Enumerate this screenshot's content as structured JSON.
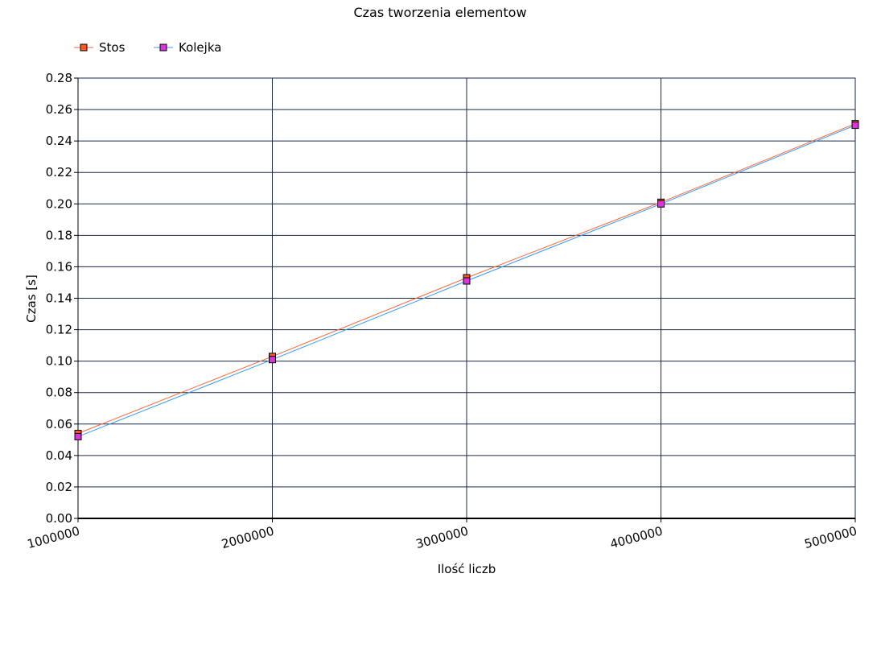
{
  "chart_data": {
    "type": "line",
    "title": "Czas tworzenia elementow",
    "xlabel": "Ilość liczb",
    "ylabel": "Czas [s]",
    "x": [
      1000000,
      2000000,
      3000000,
      4000000,
      5000000
    ],
    "x_tick_labels": [
      "1000000",
      "2000000",
      "3000000",
      "4000000",
      "5000000"
    ],
    "ylim": [
      0,
      0.28
    ],
    "y_ticks": [
      "0.00",
      "0.02",
      "0.04",
      "0.06",
      "0.08",
      "0.10",
      "0.12",
      "0.14",
      "0.16",
      "0.18",
      "0.20",
      "0.22",
      "0.24",
      "0.26",
      "0.28"
    ],
    "grid": true,
    "legend_position": "top-left",
    "series": [
      {
        "name": "Stos",
        "values": [
          0.054,
          0.103,
          0.153,
          0.201,
          0.251
        ],
        "color": "#ff6633",
        "marker_color": "#ff5522"
      },
      {
        "name": "Kolejka",
        "values": [
          0.052,
          0.101,
          0.151,
          0.2,
          0.25
        ],
        "color": "#3399ff",
        "marker_color": "#dd33dd"
      }
    ]
  }
}
